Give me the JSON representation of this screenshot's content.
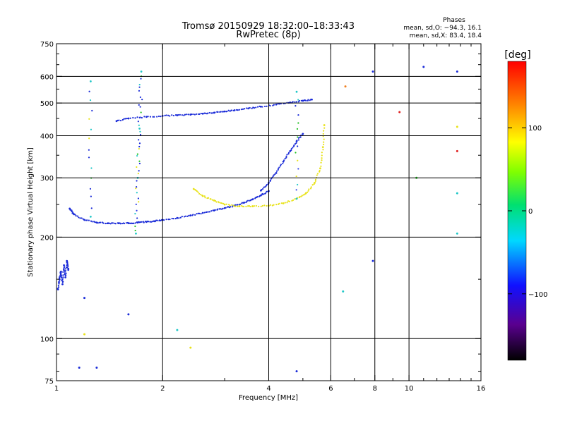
{
  "chart_data": {
    "type": "scatter",
    "title": "Tromsø 20150929 18:32:00–18:33:43",
    "subtitle": "RwPretec (8p)",
    "xlabel": "Frequency [MHz]",
    "ylabel": "Stationary phase Virtual Height [km]",
    "x_scale": "log",
    "y_scale": "log",
    "xlim": [
      1,
      16
    ],
    "ylim": [
      75,
      750
    ],
    "x_ticks": [
      1,
      2,
      4,
      6,
      8,
      10,
      16
    ],
    "x_tick_labels": [
      "1",
      "2",
      "4",
      "6",
      "8",
      "10",
      "16"
    ],
    "x_grid": [
      2,
      4,
      6,
      8,
      10
    ],
    "y_ticks": [
      75,
      100,
      200,
      300,
      400,
      500,
      600,
      750
    ],
    "y_tick_labels": [
      "75",
      "100",
      "200",
      "300",
      "400",
      "500",
      "600",
      "750"
    ],
    "y_grid": [
      100,
      200,
      300,
      400,
      500,
      600
    ],
    "grid": true,
    "legend_info": {
      "heading": "Phases",
      "line_o": "mean, sd,O: −94.3, 16.1",
      "line_x": "mean, sd,X: 83.4, 18.4"
    },
    "colorbar": {
      "label": "[deg]",
      "range": [
        -180,
        180
      ],
      "ticks": [
        100,
        0,
        -100
      ],
      "tick_labels": [
        "100",
        "0",
        "−100"
      ],
      "colormap": "rainbow"
    },
    "series": [
      {
        "mode": "O",
        "phase_mean": -94.3,
        "color": "#1a2bd8",
        "traces": [
          {
            "id": "low-F-trace",
            "x": [
              1.09,
              1.12,
              1.2,
              1.3,
              1.4,
              1.5,
              1.6,
              1.7,
              1.8,
              1.9,
              2.0,
              2.2,
              2.4,
              2.6,
              2.8,
              3.0,
              3.2,
              3.4,
              3.6,
              3.8,
              4.0
            ],
            "y": [
              243,
              234,
              225,
              221,
              220,
              220,
              220,
              221,
              222,
              223,
              225,
              228,
              232,
              236,
              240,
              244,
              248,
              253,
              259,
              266,
              274
            ]
          },
          {
            "id": "upper-O-trace",
            "x": [
              1.48,
              1.6,
              1.8,
              2.0,
              2.2,
              2.4,
              2.6,
              2.8,
              3.0,
              3.2,
              3.5,
              3.8,
              4.2,
              4.6,
              5.0,
              5.3
            ],
            "y": [
              442,
              450,
              455,
              458,
              460,
              462,
              465,
              468,
              472,
              476,
              482,
              488,
              495,
              502,
              508,
              512
            ]
          },
          {
            "id": "F2-O-rise",
            "x": [
              3.8,
              4.0,
              4.2,
              4.4,
              4.6,
              4.8,
              5.0
            ],
            "y": [
              275,
              290,
              310,
              335,
              360,
              385,
              405
            ]
          },
          {
            "id": "low-echo-cluster",
            "x": [
              1.01,
              1.02,
              1.03,
              1.04,
              1.05,
              1.06,
              1.07,
              1.08
            ],
            "y": [
              140,
              150,
              158,
              145,
              165,
              152,
              170,
              160
            ]
          }
        ]
      },
      {
        "mode": "X",
        "phase_mean": 83.4,
        "color": "#e8e21a",
        "traces": [
          {
            "id": "X-trace",
            "x": [
              2.45,
              2.6,
              2.8,
              3.0,
              3.3,
              3.6,
              4.0,
              4.4,
              4.8,
              5.1,
              5.4,
              5.6,
              5.7,
              5.75
            ],
            "y": [
              278,
              265,
              257,
              250,
              247,
              247,
              248,
              252,
              260,
              270,
              290,
              320,
              370,
              430
            ]
          }
        ]
      },
      {
        "mode": "vertical-spread",
        "color": "#22c8c8",
        "traces": [
          {
            "id": "spread-1.7MHz",
            "x": [
              1.68,
              1.7,
              1.72,
              1.74
            ],
            "y": [
              205,
              300,
              420,
              620
            ]
          },
          {
            "id": "spread-1.25MHz",
            "x": [
              1.25,
              1.25
            ],
            "y": [
              230,
              580
            ]
          },
          {
            "id": "spread-4.8MHz",
            "x": [
              4.8,
              4.8
            ],
            "y": [
              260,
              540
            ]
          }
        ]
      }
    ],
    "isolated_points": [
      {
        "x": 1.16,
        "y": 82,
        "color": "#1a2bd8"
      },
      {
        "x": 1.3,
        "y": 82,
        "color": "#1a2bd8"
      },
      {
        "x": 1.2,
        "y": 103,
        "color": "#e8e21a"
      },
      {
        "x": 2.2,
        "y": 106,
        "color": "#22c8c8"
      },
      {
        "x": 2.4,
        "y": 94,
        "color": "#e8e21a"
      },
      {
        "x": 1.2,
        "y": 132,
        "color": "#1a2bd8"
      },
      {
        "x": 1.6,
        "y": 118,
        "color": "#1a2bd8"
      },
      {
        "x": 4.8,
        "y": 80,
        "color": "#1a2bd8"
      },
      {
        "x": 7.9,
        "y": 170,
        "color": "#1a2bd8"
      },
      {
        "x": 6.5,
        "y": 138,
        "color": "#22c8c8"
      },
      {
        "x": 9.4,
        "y": 470,
        "color": "#e02020"
      },
      {
        "x": 6.6,
        "y": 560,
        "color": "#f08020"
      },
      {
        "x": 10.5,
        "y": 300,
        "color": "#20c020"
      },
      {
        "x": 13.7,
        "y": 620,
        "color": "#1a2bd8"
      },
      {
        "x": 13.7,
        "y": 360,
        "color": "#e02020"
      },
      {
        "x": 13.7,
        "y": 270,
        "color": "#22c8c8"
      },
      {
        "x": 13.7,
        "y": 205,
        "color": "#22c8c8"
      },
      {
        "x": 13.7,
        "y": 425,
        "color": "#e8e21a"
      },
      {
        "x": 11.0,
        "y": 640,
        "color": "#1a2bd8"
      },
      {
        "x": 7.9,
        "y": 620,
        "color": "#1a2bd8"
      }
    ]
  }
}
